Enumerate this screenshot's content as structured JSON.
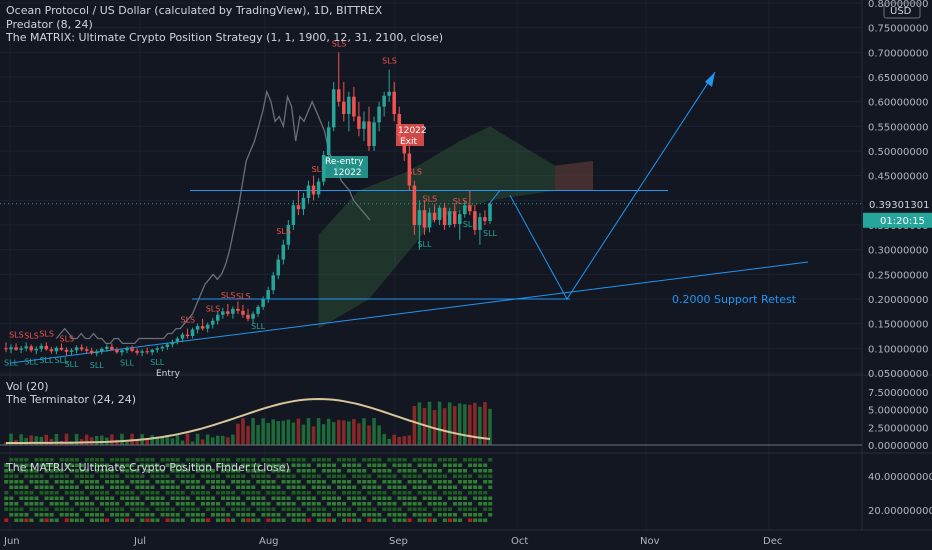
{
  "header": {
    "symbol_title": "Ocean Protocol / US Dollar (calculated by TradingView), 1D, BITTREX",
    "indicator_predator": "Predator (8, 24)",
    "indicator_matrix_strategy": "The MATRIX: Ultimate Crypto Position Strategy (1, 1, 1900, 12, 31, 2100, close)",
    "currency_badge": "USD"
  },
  "volume_pane": {
    "label_vol": "Vol (20)",
    "label_terminator": "The Terminator (24, 24)",
    "ticks": [
      "7.50000000",
      "5.00000000",
      "2.50000000",
      "0.00000000"
    ]
  },
  "finder_pane": {
    "label": "The MATRIX: Ultimate Crypto Position Finder (close)",
    "ticks": [
      "40.00000000",
      "20.00000000"
    ]
  },
  "price_axis": {
    "ticks": [
      "0.80000000",
      "0.75000000",
      "0.70000000",
      "0.65000000",
      "0.60000000",
      "0.55000000",
      "0.50000000",
      "0.45000000",
      "0.40000000",
      "0.35000000",
      "0.30000000",
      "0.25000000",
      "0.20000000",
      "0.15000000",
      "0.10000000",
      "0.05000000"
    ],
    "last_price": "0.39301301",
    "countdown": "01:20:15"
  },
  "time_axis": {
    "labels": [
      "Jun",
      "Jul",
      "Aug",
      "Sep",
      "Oct",
      "Nov",
      "Dec"
    ]
  },
  "annotations": {
    "support_retest": "0.2000 Support Retest",
    "re_entry": "Re-entry",
    "re_entry_date": "12022",
    "exit": "Exit",
    "exit_date": "12022",
    "entry": "Entry",
    "sls": "SLS",
    "sll": "SLL"
  },
  "colors": {
    "background": "#131722",
    "grid": "#1e2230",
    "up": "#26a69a",
    "down": "#ef5350",
    "drawing": "#2196f3",
    "ma_gray": "#6b6f7a",
    "ichimoku": "#2e5a3a"
  },
  "chart_data": {
    "type": "candlestick",
    "ylim": [
      0.05,
      0.8
    ],
    "x_labels": [
      "Jun",
      "Jul",
      "Aug",
      "Sep",
      "Oct",
      "Nov",
      "Dec"
    ],
    "ohlc": [
      [
        0.1,
        0.112,
        0.092,
        0.098
      ],
      [
        0.098,
        0.108,
        0.09,
        0.102
      ],
      [
        0.102,
        0.11,
        0.095,
        0.097
      ],
      [
        0.097,
        0.105,
        0.09,
        0.1
      ],
      [
        0.1,
        0.112,
        0.094,
        0.104
      ],
      [
        0.104,
        0.108,
        0.092,
        0.096
      ],
      [
        0.096,
        0.104,
        0.088,
        0.099
      ],
      [
        0.099,
        0.11,
        0.093,
        0.105
      ],
      [
        0.105,
        0.112,
        0.095,
        0.098
      ],
      [
        0.098,
        0.103,
        0.089,
        0.094
      ],
      [
        0.094,
        0.104,
        0.088,
        0.101
      ],
      [
        0.101,
        0.11,
        0.095,
        0.097
      ],
      [
        0.097,
        0.102,
        0.086,
        0.093
      ],
      [
        0.093,
        0.1,
        0.086,
        0.096
      ],
      [
        0.096,
        0.106,
        0.09,
        0.102
      ],
      [
        0.102,
        0.108,
        0.094,
        0.098
      ],
      [
        0.098,
        0.104,
        0.09,
        0.095
      ],
      [
        0.095,
        0.101,
        0.087,
        0.09
      ],
      [
        0.09,
        0.098,
        0.084,
        0.094
      ],
      [
        0.094,
        0.102,
        0.088,
        0.099
      ],
      [
        0.099,
        0.108,
        0.093,
        0.103
      ],
      [
        0.103,
        0.11,
        0.095,
        0.097
      ],
      [
        0.097,
        0.102,
        0.089,
        0.092
      ],
      [
        0.092,
        0.099,
        0.085,
        0.096
      ],
      [
        0.096,
        0.104,
        0.09,
        0.1
      ],
      [
        0.1,
        0.106,
        0.092,
        0.095
      ],
      [
        0.095,
        0.1,
        0.086,
        0.091
      ],
      [
        0.091,
        0.098,
        0.084,
        0.094
      ],
      [
        0.094,
        0.101,
        0.088,
        0.092
      ],
      [
        0.092,
        0.099,
        0.086,
        0.097
      ],
      [
        0.097,
        0.104,
        0.091,
        0.1
      ],
      [
        0.1,
        0.106,
        0.094,
        0.103
      ],
      [
        0.103,
        0.112,
        0.097,
        0.108
      ],
      [
        0.108,
        0.118,
        0.102,
        0.113
      ],
      [
        0.113,
        0.124,
        0.108,
        0.12
      ],
      [
        0.12,
        0.132,
        0.112,
        0.128
      ],
      [
        0.128,
        0.14,
        0.12,
        0.125
      ],
      [
        0.125,
        0.142,
        0.12,
        0.138
      ],
      [
        0.138,
        0.15,
        0.13,
        0.145
      ],
      [
        0.145,
        0.16,
        0.136,
        0.14
      ],
      [
        0.14,
        0.152,
        0.132,
        0.148
      ],
      [
        0.148,
        0.162,
        0.14,
        0.156
      ],
      [
        0.156,
        0.175,
        0.148,
        0.168
      ],
      [
        0.168,
        0.182,
        0.16,
        0.175
      ],
      [
        0.175,
        0.19,
        0.165,
        0.17
      ],
      [
        0.17,
        0.185,
        0.16,
        0.18
      ],
      [
        0.18,
        0.195,
        0.17,
        0.176
      ],
      [
        0.176,
        0.188,
        0.162,
        0.168
      ],
      [
        0.168,
        0.18,
        0.155,
        0.16
      ],
      [
        0.16,
        0.175,
        0.15,
        0.17
      ],
      [
        0.17,
        0.188,
        0.164,
        0.184
      ],
      [
        0.184,
        0.205,
        0.178,
        0.2
      ],
      [
        0.2,
        0.225,
        0.192,
        0.218
      ],
      [
        0.218,
        0.255,
        0.21,
        0.248
      ],
      [
        0.248,
        0.29,
        0.24,
        0.28
      ],
      [
        0.28,
        0.32,
        0.27,
        0.31
      ],
      [
        0.31,
        0.36,
        0.3,
        0.35
      ],
      [
        0.35,
        0.4,
        0.34,
        0.39
      ],
      [
        0.39,
        0.42,
        0.37,
        0.382
      ],
      [
        0.382,
        0.415,
        0.37,
        0.405
      ],
      [
        0.405,
        0.44,
        0.395,
        0.43
      ],
      [
        0.43,
        0.45,
        0.4,
        0.412
      ],
      [
        0.412,
        0.445,
        0.405,
        0.438
      ],
      [
        0.438,
        0.5,
        0.43,
        0.492
      ],
      [
        0.492,
        0.56,
        0.48,
        0.548
      ],
      [
        0.548,
        0.64,
        0.54,
        0.625
      ],
      [
        0.625,
        0.7,
        0.59,
        0.6
      ],
      [
        0.6,
        0.64,
        0.56,
        0.575
      ],
      [
        0.575,
        0.62,
        0.54,
        0.61
      ],
      [
        0.61,
        0.63,
        0.56,
        0.57
      ],
      [
        0.57,
        0.6,
        0.53,
        0.545
      ],
      [
        0.545,
        0.58,
        0.52,
        0.56
      ],
      [
        0.56,
        0.59,
        0.5,
        0.51
      ],
      [
        0.51,
        0.57,
        0.5,
        0.558
      ],
      [
        0.558,
        0.6,
        0.54,
        0.59
      ],
      [
        0.59,
        0.62,
        0.57,
        0.612
      ],
      [
        0.612,
        0.665,
        0.6,
        0.62
      ],
      [
        0.62,
        0.64,
        0.56,
        0.575
      ],
      [
        0.575,
        0.59,
        0.52,
        0.53
      ],
      [
        0.53,
        0.545,
        0.48,
        0.495
      ],
      [
        0.495,
        0.51,
        0.42,
        0.43
      ],
      [
        0.43,
        0.44,
        0.33,
        0.35
      ],
      [
        0.35,
        0.4,
        0.3,
        0.38
      ],
      [
        0.38,
        0.4,
        0.33,
        0.345
      ],
      [
        0.345,
        0.385,
        0.335,
        0.375
      ],
      [
        0.375,
        0.392,
        0.355,
        0.36
      ],
      [
        0.36,
        0.39,
        0.35,
        0.385
      ],
      [
        0.385,
        0.395,
        0.34,
        0.35
      ],
      [
        0.35,
        0.385,
        0.345,
        0.378
      ],
      [
        0.378,
        0.392,
        0.345,
        0.352
      ],
      [
        0.352,
        0.38,
        0.32,
        0.372
      ],
      [
        0.372,
        0.4,
        0.365,
        0.39
      ],
      [
        0.39,
        0.42,
        0.37,
        0.378
      ],
      [
        0.378,
        0.39,
        0.33,
        0.34
      ],
      [
        0.34,
        0.375,
        0.31,
        0.366
      ],
      [
        0.366,
        0.38,
        0.35,
        0.358
      ],
      [
        0.358,
        0.395,
        0.352,
        0.393
      ]
    ],
    "ma_gray": [
      0.12,
      0.13,
      0.14,
      0.13,
      0.12,
      0.12,
      0.13,
      0.12,
      0.12,
      0.13,
      0.12,
      0.12,
      0.11,
      0.11,
      0.12,
      0.12,
      0.11,
      0.11,
      0.11,
      0.11,
      0.12,
      0.12,
      0.12,
      0.12,
      0.12,
      0.12,
      0.12,
      0.13,
      0.13,
      0.14,
      0.14,
      0.15,
      0.16,
      0.17,
      0.19,
      0.21,
      0.23,
      0.24,
      0.25,
      0.24,
      0.25,
      0.27,
      0.3,
      0.34,
      0.38,
      0.43,
      0.48,
      0.5,
      0.52,
      0.55,
      0.58,
      0.62,
      0.6,
      0.56,
      0.57,
      0.55,
      0.61,
      0.59,
      0.52,
      0.57,
      0.56,
      0.58,
      0.6,
      0.58,
      0.56,
      0.54,
      0.5,
      0.48,
      0.47,
      0.44,
      0.43,
      0.42,
      0.4,
      0.39,
      0.38,
      0.37,
      0.36
    ],
    "support_level": 0.2,
    "resistance_level": 0.42,
    "last_price": 0.39301301,
    "volume_ylim": [
      0,
      7.5
    ]
  }
}
